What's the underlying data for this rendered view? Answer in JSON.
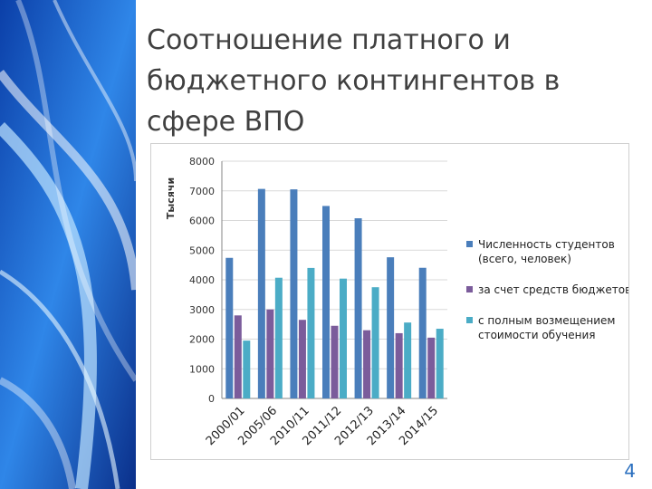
{
  "slide": {
    "title": "Соотношение платного и бюджетного контингентов в сфере ВПО",
    "page_number": "4"
  },
  "colors": {
    "title": "#404040",
    "page_number": "#2a6fbf",
    "decoration": "#1f6fd6"
  },
  "chart_data": {
    "type": "bar",
    "title": "",
    "xlabel": "",
    "ylabel": "Тысячи",
    "ylim": [
      0,
      8000
    ],
    "yticks": [
      0,
      1000,
      2000,
      3000,
      4000,
      5000,
      6000,
      7000,
      8000
    ],
    "grid": true,
    "legend_position": "right",
    "categories": [
      "2000/01",
      "2005/06",
      "2010/11",
      "2011/12",
      "2012/13",
      "2013/14",
      "2014/15"
    ],
    "series": [
      {
        "name": "Численность студентов (всего, человек)",
        "color": "#4a7ebb",
        "values": [
          4740,
          7065,
          7050,
          6490,
          6075,
          4760,
          4405
        ]
      },
      {
        "name": "за счет средств бюджетов",
        "color": "#7b5c9b",
        "values": [
          2800,
          3000,
          2650,
          2450,
          2300,
          2200,
          2050
        ]
      },
      {
        "name": "с полным возмещением стоимости обучения",
        "color": "#4bacc6",
        "values": [
          1950,
          4070,
          4400,
          4040,
          3750,
          2560,
          2350
        ]
      }
    ]
  }
}
